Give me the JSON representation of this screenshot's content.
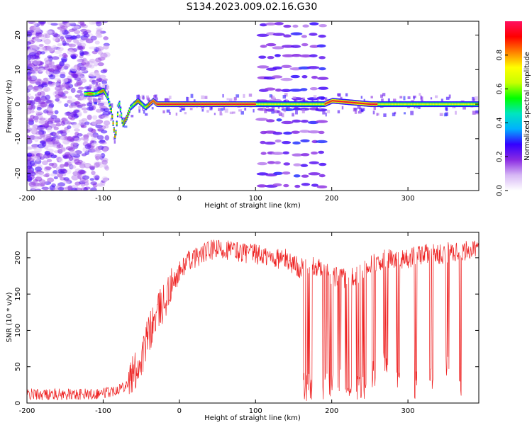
{
  "figure_title": "S134.2023.009.02.16.G30",
  "chart_data": [
    {
      "type": "heatmap",
      "title": "S134.2023.009.02.16.G30",
      "xlabel": "Height of straight line (km)",
      "ylabel": "Frequency (Hz)",
      "xlim": [
        -200,
        393
      ],
      "ylim": [
        -25,
        24
      ],
      "x_ticks": [
        -200,
        -100,
        0,
        100,
        200,
        300
      ],
      "y_ticks": [
        -20,
        -10,
        0,
        10,
        20
      ],
      "colorbar": {
        "label": "Normalized spectral amplitude",
        "range": [
          0,
          1
        ],
        "ticks": [
          0.0,
          0.2,
          0.4,
          0.6,
          0.8
        ],
        "colormap": [
          "#ffffff",
          "#d7b8f5",
          "#8a2be2",
          "#3300ff",
          "#00b0ff",
          "#00e5c0",
          "#00ff00",
          "#c8ff00",
          "#ffff00",
          "#ff8000",
          "#ff0000",
          "#ff1060"
        ]
      },
      "ridge": {
        "x": [
          -125,
          -110,
          -100,
          -95,
          -90,
          -85,
          -80,
          -75,
          -70,
          -65,
          -60,
          -55,
          -50,
          -45,
          -40,
          -35,
          -30,
          0,
          100,
          130,
          190,
          200,
          250,
          300,
          393
        ],
        "y": [
          3,
          3,
          4,
          2,
          -2,
          -10,
          1,
          -6,
          -4,
          -1,
          0,
          1,
          0,
          -1,
          0,
          1,
          0,
          0,
          0,
          0,
          0,
          1,
          0,
          0,
          0
        ]
      }
    },
    {
      "type": "line",
      "xlabel": "Height of straight line (km)",
      "ylabel": "SNR (10 * v/v)",
      "xlim": [
        -200,
        393
      ],
      "ylim": [
        0,
        235
      ],
      "x_ticks": [
        -200,
        -100,
        0,
        100,
        200,
        300
      ],
      "y_ticks": [
        0,
        50,
        100,
        150,
        200
      ],
      "color": "#ee2222",
      "series": [
        {
          "x": [
            -200,
            -180,
            -160,
            -140,
            -120,
            -100,
            -90,
            -80,
            -70,
            -60,
            -50,
            -40,
            -30,
            -20,
            -10,
            0,
            10,
            20,
            30,
            40,
            60,
            80,
            100,
            120,
            140,
            160,
            180,
            200,
            220,
            240,
            260,
            280,
            300,
            320,
            340,
            360,
            380,
            393
          ],
          "y": [
            12,
            12,
            12,
            12,
            12,
            14,
            16,
            20,
            25,
            40,
            60,
            95,
            120,
            140,
            160,
            180,
            195,
            200,
            205,
            210,
            212,
            208,
            205,
            200,
            198,
            185,
            190,
            175,
            170,
            180,
            195,
            200,
            198,
            205,
            205,
            208,
            210,
            210
          ]
        }
      ],
      "dropouts": [
        {
          "x": [
            162,
            175
          ],
          "min": 2
        },
        {
          "x": [
            188,
            202
          ],
          "min": 2
        },
        {
          "x": [
            205,
            212
          ],
          "min": 10
        },
        {
          "x": [
            218,
            226
          ],
          "min": 5
        },
        {
          "x": [
            232,
            245
          ],
          "min": 3
        },
        {
          "x": [
            252,
            258
          ],
          "min": 20
        },
        {
          "x": [
            268,
            274
          ],
          "min": 30
        },
        {
          "x": [
            285,
            290
          ],
          "min": 10
        },
        {
          "x": [
            308,
            312
          ],
          "min": 5
        },
        {
          "x": [
            328,
            334
          ],
          "min": 15
        },
        {
          "x": [
            350,
            354
          ],
          "min": 25
        },
        {
          "x": [
            367,
            370
          ],
          "min": 5
        }
      ]
    }
  ]
}
